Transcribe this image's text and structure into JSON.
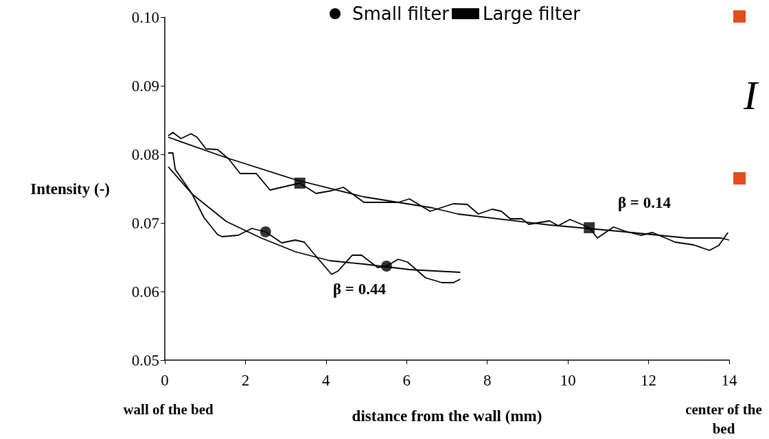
{
  "chart_data": {
    "type": "line",
    "xlabel": "distance from the wall (mm)",
    "ylabel": "Intensity (-)",
    "xlim": [
      0,
      14
    ],
    "xticks": [
      0,
      2,
      4,
      6,
      8,
      10,
      12,
      14
    ],
    "ylim": [
      0.05,
      0.1
    ],
    "yticks": [
      {
        "value": 0.05,
        "label": "0.05"
      },
      {
        "value": 0.06,
        "label": "0.06"
      },
      {
        "value": 0.07,
        "label": "0.07"
      },
      {
        "value": 0.08,
        "label": "0.08"
      },
      {
        "value": 0.09,
        "label": "0.09"
      },
      {
        "value": 0.1,
        "label": "0.10"
      }
    ],
    "grid": false,
    "legend": "top",
    "line_style": "solid",
    "series": [
      {
        "name": "Small filter",
        "color": "#000000",
        "x": [
          0.085,
          0.2,
          0.26,
          0.68,
          0.97,
          1.31,
          1.42,
          1.82,
          2.16,
          2.5,
          2.9,
          3.24,
          3.46,
          3.8,
          4.14,
          4.3,
          4.65,
          4.88,
          5.28,
          5.5,
          5.79,
          6.02,
          6.47,
          6.87,
          7.16,
          7.33
        ],
        "values": [
          0.0802,
          0.0802,
          0.0778,
          0.0742,
          0.0708,
          0.0683,
          0.068,
          0.0682,
          0.0692,
          0.0687,
          0.0671,
          0.0675,
          0.0672,
          0.0648,
          0.0625,
          0.063,
          0.0653,
          0.0653,
          0.0635,
          0.0637,
          0.0647,
          0.0643,
          0.062,
          0.0613,
          0.0613,
          0.0618
        ]
      },
      {
        "type": "scatter",
        "color": "#000000",
        "marker": "circle",
        "x": [
          2.5,
          5.5
        ],
        "values": [
          0.0687,
          0.0637
        ]
      },
      {
        "color": "#000000",
        "x": [
          0.085,
          0.68,
          1.53,
          2.39,
          3.24,
          4.09,
          4.94,
          6.07,
          7.33
        ],
        "values": [
          0.0782,
          0.0742,
          0.0702,
          0.0678,
          0.0658,
          0.0645,
          0.064,
          0.0632,
          0.0628
        ]
      },
      {
        "name": "Large filter",
        "color": "#000000",
        "x": [
          0.085,
          0.2,
          0.4,
          0.65,
          0.8,
          1.02,
          1.31,
          1.59,
          1.87,
          2.27,
          2.61,
          2.9,
          3.35,
          3.75,
          4.14,
          4.43,
          4.94,
          5.79,
          6.07,
          6.58,
          7.16,
          7.5,
          7.78,
          8.12,
          8.35,
          8.57,
          8.86,
          9.03,
          9.54,
          9.76,
          10.05,
          10.34,
          10.53,
          10.73,
          11.13,
          11.47,
          11.81,
          12.1,
          12.66,
          13.12,
          13.51,
          13.74,
          13.97
        ],
        "values": [
          0.0827,
          0.0832,
          0.0823,
          0.083,
          0.0825,
          0.0808,
          0.0807,
          0.0793,
          0.0772,
          0.0772,
          0.0748,
          0.0752,
          0.0758,
          0.0743,
          0.0747,
          0.0752,
          0.073,
          0.073,
          0.0735,
          0.0717,
          0.0728,
          0.0727,
          0.0713,
          0.072,
          0.0717,
          0.0706,
          0.0706,
          0.0698,
          0.0703,
          0.0696,
          0.0705,
          0.0698,
          0.0693,
          0.0678,
          0.0694,
          0.0687,
          0.0682,
          0.0686,
          0.0672,
          0.0668,
          0.066,
          0.0667,
          0.0686
        ]
      },
      {
        "type": "scatter",
        "color": "#000000",
        "marker": "square",
        "x": [
          3.35,
          10.53
        ],
        "values": [
          0.0758,
          0.0693
        ]
      },
      {
        "color": "#000000",
        "x": [
          0.085,
          1.53,
          3.24,
          4.94,
          6.64,
          7.27,
          9.54,
          11.24,
          12.95,
          13.8,
          14
        ],
        "values": [
          0.0825,
          0.0795,
          0.0763,
          0.0738,
          0.0722,
          0.0713,
          0.0697,
          0.0688,
          0.0678,
          0.0678,
          0.0675
        ]
      }
    ],
    "annotations": [
      "β = 0.44",
      "β = 0.14",
      "wall of the bed",
      "center of the bed",
      "I"
    ]
  }
}
